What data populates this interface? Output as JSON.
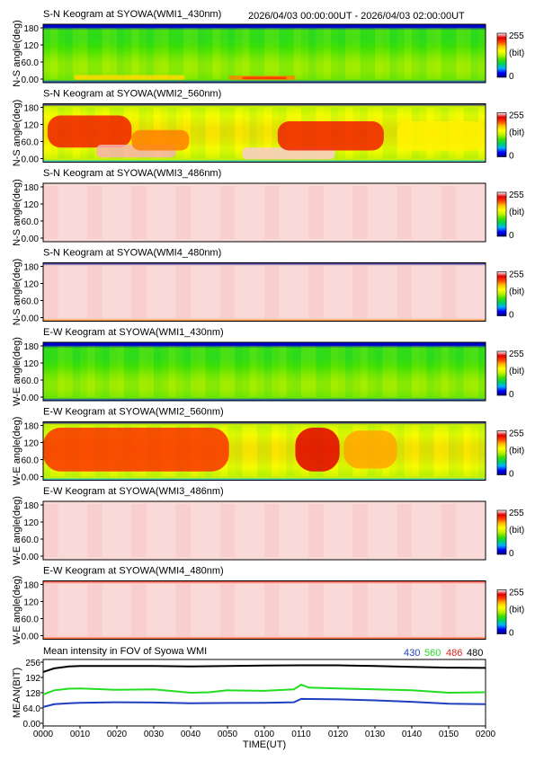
{
  "header": {
    "time_range": "2026/04/03 00:00:00UT - 2026/04/03 02:00:00UT"
  },
  "colors": {
    "scale": [
      "#000080",
      "#0000ff",
      "#00b0ff",
      "#00d060",
      "#40e000",
      "#c0f000",
      "#ffff00",
      "#ffc000",
      "#ff4000",
      "#e00000",
      "#ffffff"
    ],
    "series_430": "#1f3fbf",
    "series_560": "#22dd22",
    "series_486": "#dd2222",
    "series_480": "#000000"
  },
  "chart_data": [
    {
      "type": "heatmap",
      "title": "S-N Keogram at SYOWA(WMI1_430nm)",
      "ylabel": "N-S angle(deg)",
      "yticks": [
        "180",
        "120",
        "60.0",
        "0.00"
      ],
      "ylim": [
        0,
        180
      ],
      "colorbar": {
        "max": "255",
        "unit": "(bit)",
        "min": "0"
      },
      "profile": "green",
      "features": [
        {
          "t0": 0.07,
          "t1": 0.32,
          "a0": 0.05,
          "a1": 0.13,
          "level": 0.66
        },
        {
          "t0": 0.42,
          "t1": 0.57,
          "a0": 0.05,
          "a1": 0.12,
          "level": 0.75
        },
        {
          "t0": 0.45,
          "t1": 0.55,
          "a0": 0.06,
          "a1": 0.1,
          "level": 0.82
        }
      ]
    },
    {
      "type": "heatmap",
      "title": "S-N Keogram at SYOWA(WMI2_560nm)",
      "ylabel": "N-S angle(deg)",
      "yticks": [
        "180",
        "120",
        "60.0",
        "0.00"
      ],
      "ylim": [
        0,
        180
      ],
      "colorbar": {
        "max": "255",
        "unit": "(bit)",
        "min": "0"
      },
      "profile": "strong",
      "features": [
        {
          "t0": 0.01,
          "t1": 0.2,
          "a0": 0.25,
          "a1": 0.8,
          "level": 0.85
        },
        {
          "t0": 0.12,
          "t1": 0.3,
          "a0": 0.08,
          "a1": 0.3,
          "level": 0.97
        },
        {
          "t0": 0.2,
          "t1": 0.33,
          "a0": 0.2,
          "a1": 0.55,
          "level": 0.75
        },
        {
          "t0": 0.45,
          "t1": 0.66,
          "a0": 0.05,
          "a1": 0.25,
          "level": 0.98
        },
        {
          "t0": 0.53,
          "t1": 0.77,
          "a0": 0.2,
          "a1": 0.7,
          "level": 0.85
        },
        {
          "t0": 0.8,
          "t1": 1.0,
          "a0": 0.2,
          "a1": 0.7,
          "level": 0.62
        }
      ]
    },
    {
      "type": "heatmap",
      "title": "S-N Keogram at SYOWA(WMI3_486nm)",
      "ylabel": "N-S angle(deg)",
      "yticks": [
        "180",
        "120",
        "60.0",
        "0.00"
      ],
      "ylim": [
        0,
        180
      ],
      "colorbar": {
        "max": "255",
        "unit": "(bit)",
        "min": "0"
      },
      "profile": "white",
      "features": []
    },
    {
      "type": "heatmap",
      "title": "S-N Keogram at SYOWA(WMI4_480nm)",
      "ylabel": "N-S angle(deg)",
      "yticks": [
        "180",
        "120",
        "60.0",
        "0.00"
      ],
      "ylim": [
        0,
        180
      ],
      "colorbar": {
        "max": "255",
        "unit": "(bit)",
        "min": "0"
      },
      "profile": "white-dark",
      "features": []
    },
    {
      "type": "heatmap",
      "title": "E-W Keogram at SYOWA(WMI1_430nm)",
      "ylabel": "W-E angle(deg)",
      "yticks": [
        "180",
        "120",
        "60.0",
        "0.00"
      ],
      "ylim": [
        0,
        180
      ],
      "colorbar": {
        "max": "255",
        "unit": "(bit)",
        "min": "0"
      },
      "profile": "green",
      "features": []
    },
    {
      "type": "heatmap",
      "title": "E-W Keogram at SYOWA(WMI2_560nm)",
      "ylabel": "W-E angle(deg)",
      "yticks": [
        "180",
        "120",
        "60.0",
        "0.00"
      ],
      "ylim": [
        0,
        180
      ],
      "colorbar": {
        "max": "255",
        "unit": "(bit)",
        "min": "0"
      },
      "profile": "strong",
      "features": [
        {
          "t0": 0.0,
          "t1": 0.42,
          "a0": 0.15,
          "a1": 0.9,
          "level": 0.82
        },
        {
          "t0": 0.57,
          "t1": 0.67,
          "a0": 0.15,
          "a1": 0.9,
          "level": 0.9
        },
        {
          "t0": 0.68,
          "t1": 0.8,
          "a0": 0.2,
          "a1": 0.85,
          "level": 0.72
        }
      ]
    },
    {
      "type": "heatmap",
      "title": "E-W Keogram at SYOWA(WMI3_486nm)",
      "ylabel": "W-E angle(deg)",
      "yticks": [
        "180",
        "120",
        "60.0",
        "0.00"
      ],
      "ylim": [
        0,
        180
      ],
      "colorbar": {
        "max": "255",
        "unit": "(bit)",
        "min": "0"
      },
      "profile": "white",
      "features": []
    },
    {
      "type": "heatmap",
      "title": "E-W Keogram at SYOWA(WMI4_480nm)",
      "ylabel": "W-E angle(deg)",
      "yticks": [
        "180",
        "120",
        "60.0",
        "0.00"
      ],
      "ylim": [
        0,
        180
      ],
      "colorbar": {
        "max": "255",
        "unit": "(bit)",
        "min": "0"
      },
      "profile": "white-edge",
      "features": []
    },
    {
      "type": "line",
      "title": "Mean intensity in FOV of Syowa WMI",
      "ylabel": "MEAN(BIT)",
      "xlabel": "TIME(UT)",
      "yticks": [
        "256",
        "192",
        "128",
        "64.0",
        "0.00"
      ],
      "ylim": [
        0,
        256
      ],
      "xticks": [
        "0000",
        "0010",
        "0020",
        "0030",
        "0040",
        "0050",
        "0100",
        "0110",
        "0120",
        "0130",
        "0140",
        "0150",
        "0200"
      ],
      "legend": [
        "430",
        "560",
        "486",
        "480"
      ],
      "series": [
        {
          "name": "480",
          "x": [
            0,
            3,
            7,
            10,
            20,
            30,
            40,
            50,
            60,
            70,
            80,
            90,
            100,
            110,
            120
          ],
          "y": [
            215,
            230,
            238,
            240,
            240,
            240,
            238,
            240,
            242,
            243,
            243,
            240,
            236,
            233,
            232
          ]
        },
        {
          "name": "560",
          "x": [
            0,
            3,
            7,
            10,
            15,
            20,
            30,
            40,
            45,
            50,
            60,
            68,
            70,
            72,
            80,
            90,
            100,
            110,
            120
          ],
          "y": [
            120,
            138,
            145,
            146,
            143,
            140,
            142,
            128,
            130,
            138,
            136,
            142,
            162,
            150,
            146,
            142,
            138,
            128,
            130
          ]
        },
        {
          "name": "430",
          "x": [
            0,
            3,
            7,
            10,
            20,
            30,
            40,
            50,
            60,
            68,
            70,
            80,
            90,
            100,
            110,
            120
          ],
          "y": [
            68,
            80,
            84,
            86,
            88,
            87,
            84,
            85,
            86,
            88,
            102,
            100,
            96,
            90,
            82,
            80
          ]
        }
      ]
    }
  ]
}
